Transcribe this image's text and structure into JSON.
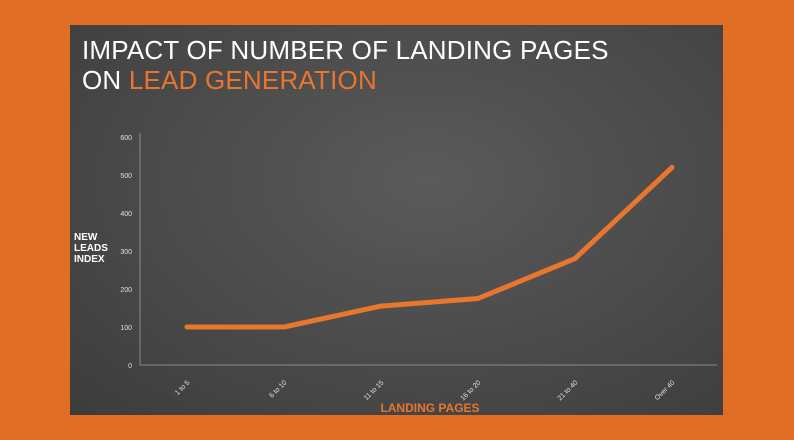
{
  "title": {
    "line1": "IMPACT OF NUMBER OF LANDING PAGES",
    "line2_prefix": "ON ",
    "line2_accent": "LEAD GENERATION"
  },
  "colors": {
    "background": "#e06e24",
    "accent": "#e8762d",
    "panel": "#4a4a4a",
    "text": "#ffffff"
  },
  "chart_data": {
    "type": "line",
    "xlabel": "LANDING PAGES",
    "ylabel_lines": [
      "NEW",
      "LEADS",
      "INDEX"
    ],
    "categories": [
      "1 to 5",
      "6 to 10",
      "11 to 15",
      "16 to 20",
      "21 to 40",
      "Over 40"
    ],
    "values": [
      100,
      100,
      155,
      175,
      280,
      520
    ],
    "ylim": [
      0,
      600
    ],
    "yticks": [
      0,
      100,
      200,
      300,
      400,
      500,
      600
    ],
    "grid": false,
    "legend": "none"
  }
}
